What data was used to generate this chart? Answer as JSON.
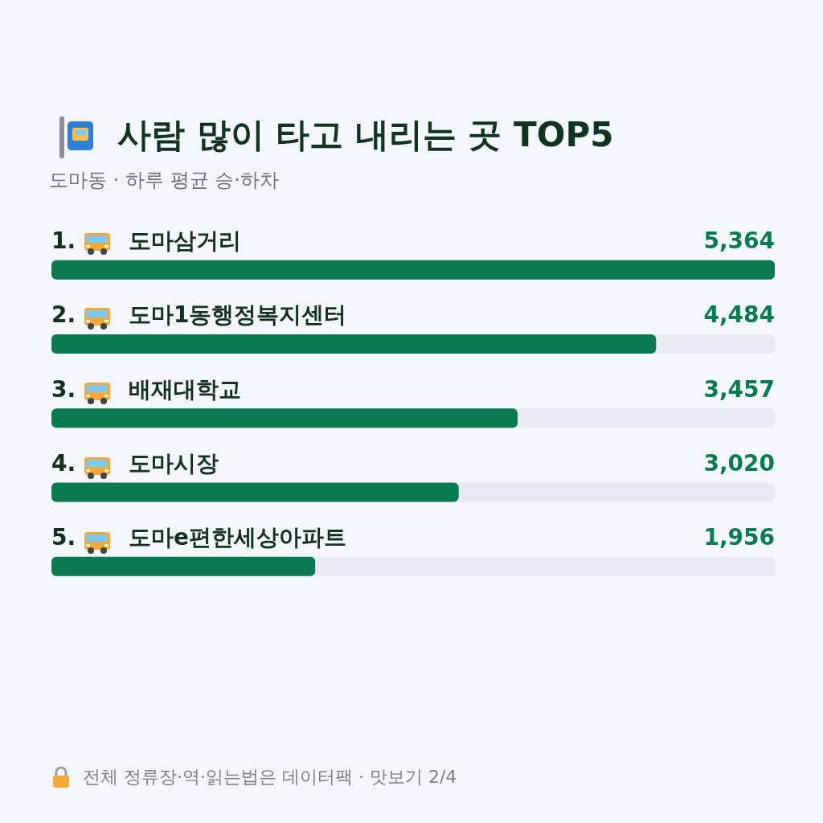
{
  "chart_data": {
    "type": "bar",
    "orientation": "horizontal",
    "title": "사람 많이 타고 내리는 곳 TOP5",
    "subtitle": "도마동 · 하루 평균 승·하차",
    "categories": [
      "1. 도마삼거리",
      "2. 도마1동행정복지센터",
      "3. 배재대학교",
      "4. 도마시장",
      "5. 도마e편한세상아파트"
    ],
    "values": [
      5364,
      4484,
      3457,
      3020,
      1956
    ],
    "value_labels": [
      "5,364",
      "4,484",
      "3,457",
      "3,020",
      "1,956"
    ],
    "color": "#0a7a50",
    "xlim": [
      0,
      5364
    ],
    "tick_labels": "y",
    "annotations": [
      "전체 정류장·역·읽는법은 데이터팩 · 맛보기 2/4"
    ]
  }
}
